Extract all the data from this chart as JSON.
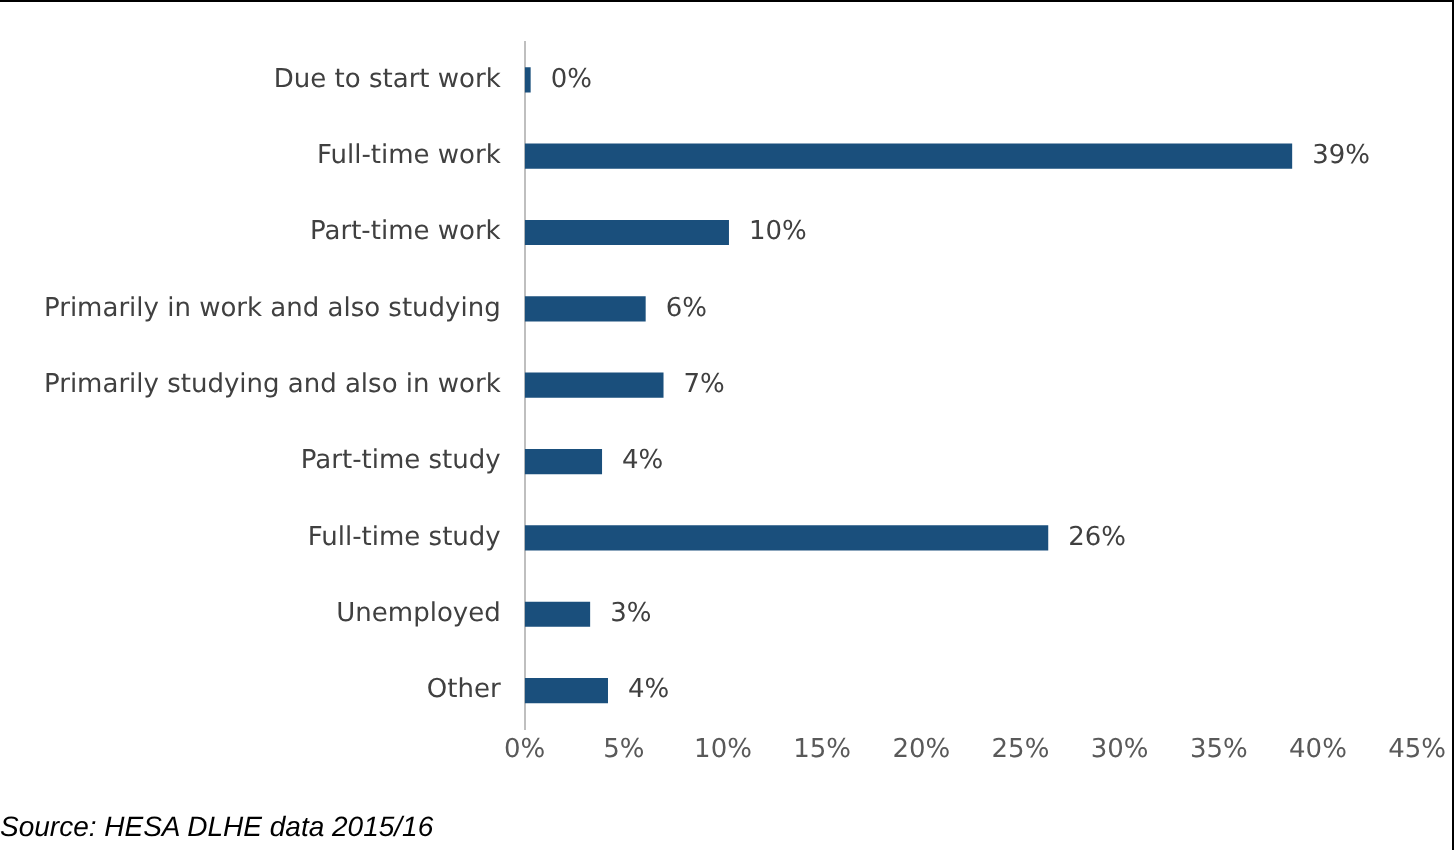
{
  "chart_data": {
    "type": "bar",
    "orientation": "horizontal",
    "categories": [
      "Due to start work",
      "Full-time work",
      "Part-time work",
      "Primarily in work and also studying",
      "Primarily studying and also in work",
      "Part-time study",
      "Full-time study",
      "Unemployed",
      "Other"
    ],
    "values": [
      0.3,
      38.7,
      10.3,
      6.1,
      7.0,
      3.9,
      26.4,
      3.3,
      4.2
    ],
    "value_labels": [
      "0%",
      "39%",
      "10%",
      "6%",
      "7%",
      "4%",
      "26%",
      "3%",
      "4%"
    ],
    "color": "#1a4f7c",
    "xlim": [
      0,
      45
    ],
    "xticks": [
      {
        "value": 0,
        "label": "0%"
      },
      {
        "value": 5,
        "label": "5%"
      },
      {
        "value": 10,
        "label": "10%"
      },
      {
        "value": 15,
        "label": "15%"
      },
      {
        "value": 20,
        "label": "20%"
      },
      {
        "value": 25,
        "label": "25%"
      },
      {
        "value": 30,
        "label": "30%"
      },
      {
        "value": 35,
        "label": "35%"
      },
      {
        "value": 40,
        "label": "40%"
      },
      {
        "value": 45,
        "label": "45%"
      }
    ],
    "grid": false,
    "legend": false,
    "annotations": [
      "Source: HESA DLHE data 2015/16"
    ]
  }
}
